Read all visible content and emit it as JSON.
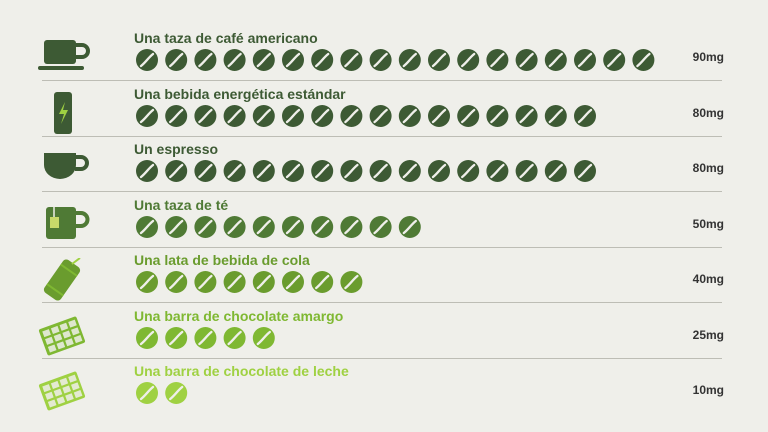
{
  "chart_data": {
    "type": "pictograph",
    "unit": "mg",
    "bean_value_mg": 5,
    "categories": [
      "Una taza de café americano",
      "Una bebida energética estándar",
      "Un espresso",
      "Una taza de té",
      "Una lata de bebida de cola",
      "Una barra de chocolate amargo",
      "Una barra de chocolate de leche"
    ],
    "values": [
      90,
      80,
      80,
      50,
      40,
      25,
      10
    ],
    "value_labels": [
      "90mg",
      "80mg",
      "80mg",
      "50mg",
      "40mg",
      "25mg",
      "10mg"
    ],
    "icons": [
      "coffee-cup-saucer-icon",
      "energy-drink-can-icon",
      "espresso-cup-icon",
      "tea-mug-icon",
      "cola-can-icon",
      "dark-chocolate-bar-icon",
      "milk-chocolate-bar-icon"
    ],
    "colors": [
      "#3d5a34",
      "#3d5a34",
      "#3d5a34",
      "#4f7a35",
      "#6a9c2e",
      "#7fb832",
      "#9fd142"
    ]
  }
}
